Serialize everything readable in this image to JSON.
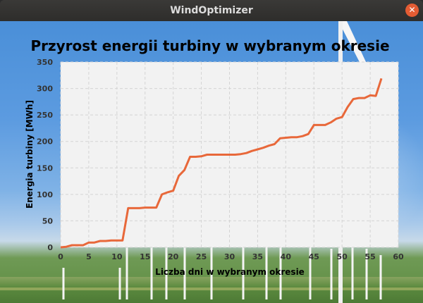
{
  "window": {
    "title": "WindOptimizer",
    "close_glyph": "✕"
  },
  "colors": {
    "line": "#e8683a",
    "plot_bg": "#f2f2f2",
    "grid": "#d4d4d4",
    "titlebar": "#2f2e2c",
    "close_button": "#e45c33"
  },
  "chart_data": {
    "type": "line",
    "title": "Przyrost energii turbiny w wybranym okresie",
    "xlabel": "Liczba dni w wybranym okresie",
    "ylabel": "Energia turbiny [MWh]",
    "xlim": [
      0,
      60
    ],
    "ylim": [
      0,
      350
    ],
    "grid": true,
    "legend": "none",
    "x_ticks": [
      "0",
      "5",
      "10",
      "15",
      "20",
      "25",
      "30",
      "35",
      "40",
      "45",
      "50",
      "55",
      "60"
    ],
    "y_ticks": [
      "0",
      "50",
      "100",
      "150",
      "200",
      "250",
      "300",
      "350"
    ],
    "series": [
      {
        "x": [
          0,
          1,
          2,
          3,
          4,
          5,
          6,
          7,
          8,
          9,
          10,
          11,
          12,
          13,
          14,
          15,
          16,
          17,
          18,
          19,
          20,
          21,
          22,
          23,
          24,
          25,
          26,
          27,
          28,
          29,
          30,
          31,
          32,
          33,
          34,
          35,
          36,
          37,
          38,
          39,
          40,
          41,
          42,
          43,
          44,
          45,
          46,
          47,
          48,
          49,
          50,
          51,
          52,
          53,
          54,
          55,
          56,
          57
        ],
        "y": [
          0,
          1,
          4,
          4,
          4,
          9,
          9,
          12,
          12,
          13,
          13,
          13,
          74,
          74,
          74,
          75,
          75,
          75,
          100,
          104,
          107,
          135,
          146,
          171,
          171,
          172,
          175,
          175,
          175,
          175,
          175,
          175,
          176,
          178,
          182,
          185,
          188,
          192,
          195,
          206,
          207,
          208,
          208,
          210,
          214,
          231,
          231,
          231,
          236,
          243,
          246,
          265,
          280,
          282,
          282,
          287,
          286,
          319
        ]
      }
    ]
  }
}
